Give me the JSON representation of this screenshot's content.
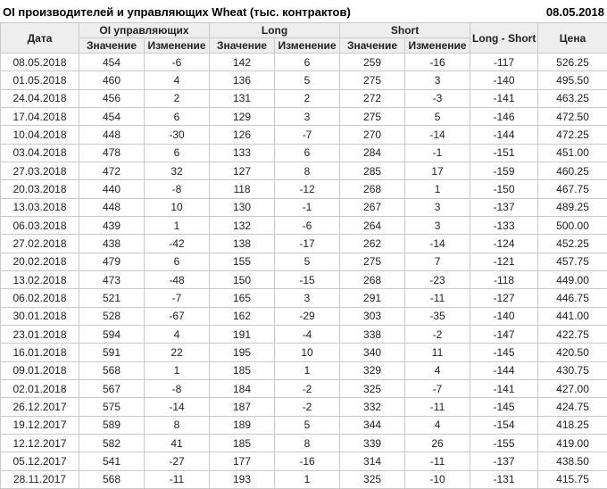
{
  "title": "OI производителей и управляющих Wheat (тыс. контрактов)",
  "report_date": "08.05.2018",
  "colors": {
    "positive": "#008000",
    "negative": "#cc0000",
    "text": "#222222",
    "header_bg": "#eeeeee",
    "border": "#c9c9c9"
  },
  "table": {
    "header": {
      "date_col": "Дата",
      "oi_group": "OI управляющих",
      "long_group": "Long",
      "short_group": "Short",
      "long_short_col": "Long - Short",
      "price_col": "Цена",
      "value_label": "Значение",
      "change_label": "Изменение"
    },
    "rows": [
      [
        "08.05.2018",
        "454",
        "-6",
        "142",
        "6",
        "259",
        "-16",
        "-117",
        "526.25"
      ],
      [
        "01.05.2018",
        "460",
        "4",
        "136",
        "5",
        "275",
        "3",
        "-140",
        "495.50"
      ],
      [
        "24.04.2018",
        "456",
        "2",
        "131",
        "2",
        "272",
        "-3",
        "-141",
        "463.25"
      ],
      [
        "17.04.2018",
        "454",
        "6",
        "129",
        "3",
        "275",
        "5",
        "-146",
        "472.50"
      ],
      [
        "10.04.2018",
        "448",
        "-30",
        "126",
        "-7",
        "270",
        "-14",
        "-144",
        "472.25"
      ],
      [
        "03.04.2018",
        "478",
        "6",
        "133",
        "6",
        "284",
        "-1",
        "-151",
        "451.00"
      ],
      [
        "27.03.2018",
        "472",
        "32",
        "127",
        "8",
        "285",
        "17",
        "-159",
        "460.25"
      ],
      [
        "20.03.2018",
        "440",
        "-8",
        "118",
        "-12",
        "268",
        "1",
        "-150",
        "467.75"
      ],
      [
        "13.03.2018",
        "448",
        "10",
        "130",
        "-1",
        "267",
        "3",
        "-137",
        "489.25"
      ],
      [
        "06.03.2018",
        "439",
        "1",
        "132",
        "-6",
        "264",
        "3",
        "-133",
        "500.00"
      ],
      [
        "27.02.2018",
        "438",
        "-42",
        "138",
        "-17",
        "262",
        "-14",
        "-124",
        "452.25"
      ],
      [
        "20.02.2018",
        "479",
        "6",
        "155",
        "5",
        "275",
        "7",
        "-121",
        "457.75"
      ],
      [
        "13.02.2018",
        "473",
        "-48",
        "150",
        "-15",
        "268",
        "-23",
        "-118",
        "449.00"
      ],
      [
        "06.02.2018",
        "521",
        "-7",
        "165",
        "3",
        "291",
        "-11",
        "-127",
        "446.75"
      ],
      [
        "30.01.2018",
        "528",
        "-67",
        "162",
        "-29",
        "303",
        "-35",
        "-140",
        "441.00"
      ],
      [
        "23.01.2018",
        "594",
        "4",
        "191",
        "-4",
        "338",
        "-2",
        "-147",
        "422.75"
      ],
      [
        "16.01.2018",
        "591",
        "22",
        "195",
        "10",
        "340",
        "11",
        "-145",
        "420.50"
      ],
      [
        "09.01.2018",
        "568",
        "1",
        "185",
        "1",
        "329",
        "4",
        "-144",
        "430.75"
      ],
      [
        "02.01.2018",
        "567",
        "-8",
        "184",
        "-2",
        "325",
        "-7",
        "-141",
        "427.00"
      ],
      [
        "26.12.2017",
        "575",
        "-14",
        "187",
        "-2",
        "332",
        "-11",
        "-145",
        "424.75"
      ],
      [
        "19.12.2017",
        "589",
        "8",
        "189",
        "5",
        "344",
        "4",
        "-154",
        "418.25"
      ],
      [
        "12.12.2017",
        "582",
        "41",
        "185",
        "8",
        "339",
        "26",
        "-155",
        "419.00"
      ],
      [
        "05.12.2017",
        "541",
        "-27",
        "177",
        "-16",
        "314",
        "-11",
        "-137",
        "438.50"
      ],
      [
        "28.11.2017",
        "568",
        "-11",
        "193",
        "1",
        "325",
        "-10",
        "-131",
        "415.75"
      ]
    ]
  }
}
